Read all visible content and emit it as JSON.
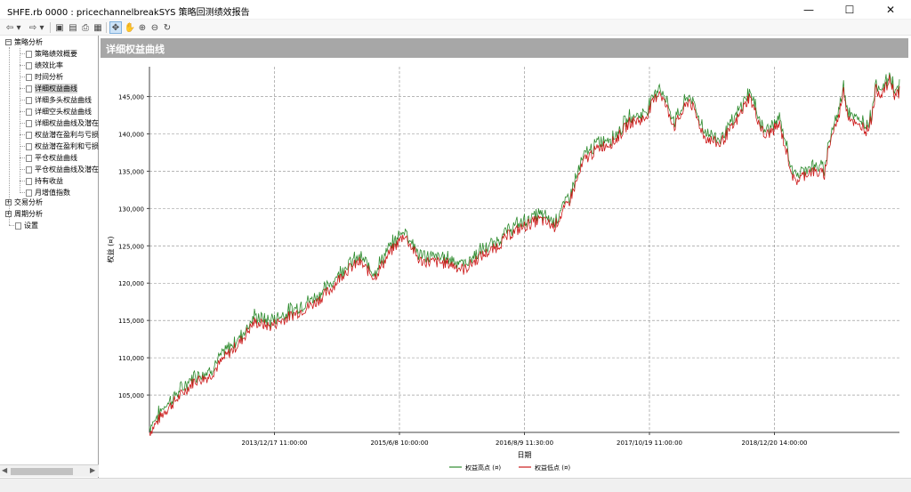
{
  "window": {
    "title": "SHFE.rb 0000 : pricechannelbreakSYS 策略回测绩效报告",
    "controls": {
      "minimize": "—",
      "maximize": "☐",
      "close": "✕"
    }
  },
  "toolbar": {
    "buttons": [
      {
        "name": "back-icon",
        "glyph": "⇦"
      },
      {
        "name": "back-dropdown-icon",
        "glyph": "▾"
      },
      {
        "name": "forward-icon",
        "glyph": "⇨"
      },
      {
        "name": "forward-dropdown-icon",
        "glyph": "▾"
      },
      {
        "name": "save-icon",
        "glyph": "▣"
      },
      {
        "name": "export-icon",
        "glyph": "▤"
      },
      {
        "name": "print-icon",
        "glyph": "⎙"
      },
      {
        "name": "report-icon",
        "glyph": "▦"
      },
      {
        "name": "pointer-icon",
        "glyph": "✥"
      },
      {
        "name": "pan-hand-icon",
        "glyph": "✋"
      },
      {
        "name": "zoom-in-icon",
        "glyph": "⊕"
      },
      {
        "name": "zoom-out-icon",
        "glyph": "⊖"
      },
      {
        "name": "reset-icon",
        "glyph": "↻"
      }
    ]
  },
  "sidebar": {
    "groups": [
      {
        "label": "策略分析",
        "expanded": true,
        "toggle": "−"
      },
      {
        "label": "交易分析",
        "expanded": false,
        "toggle": "+"
      },
      {
        "label": "周期分析",
        "expanded": false,
        "toggle": "+"
      }
    ],
    "strategy_items": [
      "策略绩效概要",
      "绩效比率",
      "时间分析",
      "详细权益曲线",
      "详细多头权益曲线",
      "详细空头权益曲线",
      "详细权益曲线及潜在",
      "权益潜在盈利与亏损",
      "权益潜在盈利和亏损",
      "平仓权益曲线",
      "平仓权益曲线及潜在",
      "持有收益",
      "月增值指数"
    ],
    "selected_item": "详细权益曲线",
    "settings_label": "设置"
  },
  "panel": {
    "title": "详细权益曲线"
  },
  "chart_data": {
    "type": "line",
    "title": "详细权益曲线",
    "xlabel": "日期",
    "ylabel": "权益 (¤)",
    "ylim": [
      100000,
      149000
    ],
    "yticks": [
      105000,
      110000,
      115000,
      120000,
      125000,
      130000,
      135000,
      140000,
      145000
    ],
    "ytick_labels": [
      "105,000",
      "110,000",
      "115,000",
      "120,000",
      "125,000",
      "130,000",
      "135,000",
      "140,000",
      "145,000"
    ],
    "xtick_labels": [
      "2013/12/17 11:00:00",
      "2015/6/8 10:00:00",
      "2016/8/9 11:30:00",
      "2017/10/19 11:00:00",
      "2018/12/20 14:00:00"
    ],
    "grid": true,
    "legend_position": "bottom-center",
    "series_colors": {
      "high": "#2e8b2e",
      "low": "#cc1a1a"
    },
    "series": [
      {
        "name": "权益高点 (¤)",
        "color": "#2e8b2e"
      },
      {
        "name": "权益低点 (¤)",
        "color": "#cc1a1a"
      }
    ],
    "x": [
      0,
      2,
      4,
      6,
      8,
      10,
      12,
      14,
      16,
      18,
      20,
      22,
      24,
      26,
      28,
      30,
      32,
      34,
      36,
      38,
      40,
      42,
      44,
      46,
      48,
      50,
      52,
      54,
      56,
      58,
      60,
      62,
      64,
      66,
      68,
      70,
      72,
      74,
      76,
      78,
      80,
      82,
      84,
      86,
      88,
      90,
      92,
      94,
      96,
      98,
      100
    ],
    "values": [
      100000,
      102800,
      104800,
      106900,
      107500,
      110000,
      112000,
      114800,
      114200,
      115200,
      116200,
      117300,
      119000,
      121500,
      122800,
      120800,
      124000,
      126500,
      123000,
      122800,
      122600,
      121800,
      123500,
      124600,
      126500,
      127600,
      128500,
      127600,
      131000,
      136500,
      138200,
      139000,
      141500,
      142000,
      145800,
      141000,
      144600,
      139600,
      138600,
      141200,
      145000,
      139600,
      141200,
      133500,
      135000,
      134600,
      132800,
      137200,
      136500,
      135400,
      140300
    ]
  },
  "chart_data_tail": [
    138500,
    140600,
    142000,
    146000,
    142600,
    141900,
    140800,
    141200,
    140400,
    142000,
    146000,
    145400,
    146000,
    147300,
    145200,
    145600
  ]
}
